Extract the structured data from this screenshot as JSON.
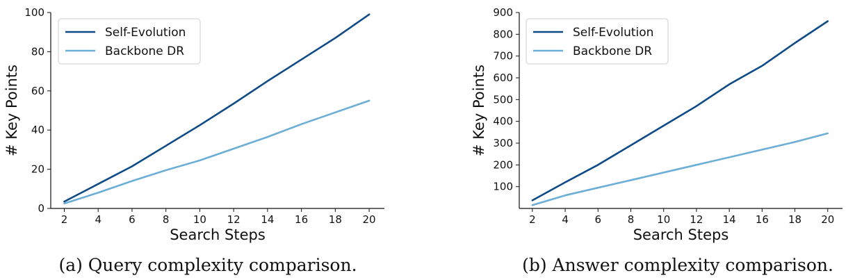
{
  "chart_data": [
    {
      "type": "line",
      "title": "",
      "caption": "(a) Query complexity comparison.",
      "xlabel": "Search Steps",
      "ylabel": "# Key Points",
      "x": [
        2,
        4,
        6,
        8,
        10,
        12,
        14,
        16,
        18,
        20
      ],
      "xticks": [
        2,
        4,
        6,
        8,
        10,
        12,
        14,
        16,
        18,
        20
      ],
      "yticks": [
        0,
        20,
        40,
        60,
        80,
        100
      ],
      "xlim": [
        1.2,
        20.9
      ],
      "ylim": [
        0,
        100
      ],
      "legend_position": "top-left",
      "series": [
        {
          "name": "Self-Evolution",
          "color": "#0d4a86",
          "values": [
            3.5,
            12.5,
            21.5,
            32,
            42.5,
            53.5,
            65,
            76,
            87,
            99
          ]
        },
        {
          "name": "Backbone DR",
          "color": "#6baed6",
          "values": [
            2.5,
            8,
            14,
            19.5,
            24.5,
            30.5,
            36.5,
            43,
            49,
            55
          ]
        }
      ]
    },
    {
      "type": "line",
      "title": "",
      "caption": "(b) Answer complexity comparison.",
      "xlabel": "Search Steps",
      "ylabel": "# Key Points",
      "x": [
        2,
        4,
        6,
        8,
        10,
        12,
        14,
        16,
        18,
        20
      ],
      "xticks": [
        2,
        4,
        6,
        8,
        10,
        12,
        14,
        16,
        18,
        20
      ],
      "yticks": [
        100,
        200,
        300,
        400,
        500,
        600,
        700,
        800,
        900
      ],
      "xlim": [
        1.2,
        20.9
      ],
      "ylim": [
        0,
        900
      ],
      "legend_position": "top-left",
      "series": [
        {
          "name": "Self-Evolution",
          "color": "#0d4a86",
          "values": [
            37,
            120,
            200,
            290,
            380,
            470,
            570,
            655,
            760,
            860
          ]
        },
        {
          "name": "Backbone DR",
          "color": "#6baed6",
          "values": [
            15,
            60,
            95,
            130,
            165,
            200,
            235,
            270,
            305,
            345
          ]
        }
      ]
    }
  ]
}
